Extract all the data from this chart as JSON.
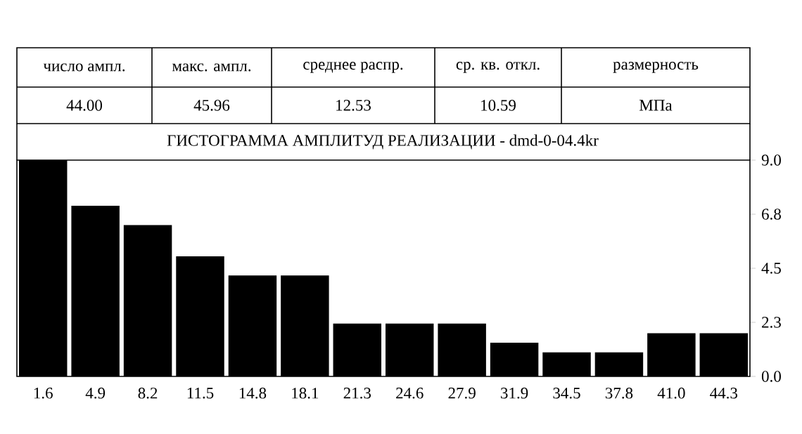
{
  "chart_data": {
    "type": "bar",
    "title": "ГИСТОГРАММА АМПЛИТУД РЕАЛИЗАЦИИ - dmd-0-04.4kr",
    "categories": [
      "1.6",
      "4.9",
      "8.2",
      "11.5",
      "14.8",
      "18.1",
      "21.3",
      "24.6",
      "27.9",
      "31.9",
      "34.5",
      "37.8",
      "41.0",
      "44.3"
    ],
    "values": [
      9.0,
      7.1,
      6.3,
      5.0,
      4.2,
      4.2,
      2.2,
      2.2,
      2.2,
      1.4,
      1.0,
      1.0,
      1.8,
      1.8
    ],
    "color": "#000000",
    "ylim": [
      0,
      9.0
    ],
    "yticks": [
      {
        "value": 0,
        "label": "0.0"
      },
      {
        "value": 2.25,
        "label": "2.3"
      },
      {
        "value": 4.5,
        "label": "4.5"
      },
      {
        "value": 6.75,
        "label": "6.8"
      },
      {
        "value": 9.0,
        "label": "9.0"
      }
    ],
    "annotations": [
      "число ампл.",
      "макс. ампл.",
      "среднее распр.",
      "ср. кв. откл.",
      "размерность",
      "44.00",
      "45.96",
      "12.53",
      "10.59",
      "МПа"
    ]
  }
}
